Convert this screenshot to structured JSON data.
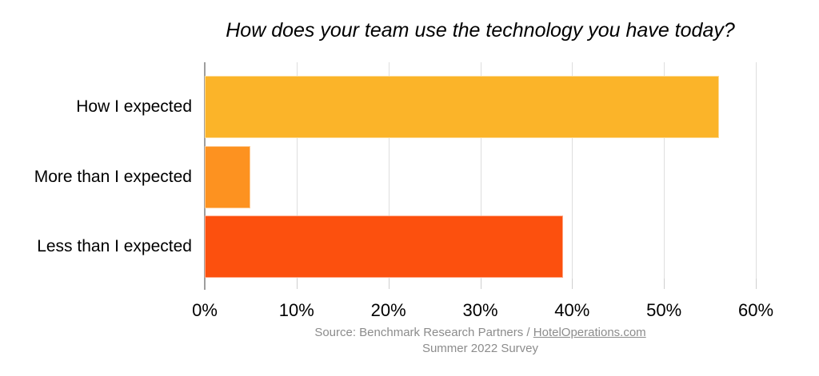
{
  "chart_data": {
    "type": "bar",
    "orientation": "horizontal",
    "title": "How does your team use the technology you have today?",
    "categories": [
      "How I expected",
      "More than I expected",
      "Less than I expected"
    ],
    "values": [
      56,
      5,
      39
    ],
    "value_unit": "%",
    "xlim": [
      0,
      60
    ],
    "x_tick_labels": [
      "0%",
      "10%",
      "20%",
      "30%",
      "40%",
      "50%",
      "60%"
    ],
    "bar_colors": [
      "#FBB429",
      "#FD9220",
      "#FC500E"
    ],
    "grid": true,
    "legend": false
  },
  "source": {
    "prefix": "Source: Benchmark Research Partners / ",
    "link": "HotelOperations.com",
    "line2": "Summer 2022 Survey"
  },
  "colors": {
    "axis_line": "#9e9e9e",
    "gridline": "#dedede",
    "tick": "#cfcfcf",
    "source_text": "#8c8c8c"
  }
}
